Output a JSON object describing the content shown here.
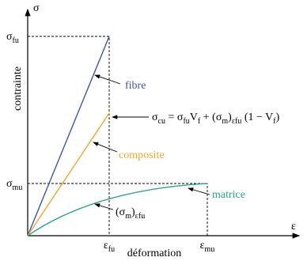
{
  "axes": {
    "y_symbol": "σ",
    "y_label": "contrainte",
    "x_symbol": "ε",
    "x_label": "déformation"
  },
  "ticks": {
    "sigma_fu": [
      {
        "text": "σ"
      },
      {
        "sub": "fu"
      }
    ],
    "sigma_mu": [
      {
        "text": "σ"
      },
      {
        "sub": "mu"
      }
    ],
    "eps_fu": [
      {
        "text": "ε"
      },
      {
        "sub": "fu"
      }
    ],
    "eps_mu": [
      {
        "text": "ε"
      },
      {
        "sub": "mu"
      }
    ]
  },
  "curves": {
    "fibre": "fibre",
    "composite": "composite",
    "matrice": "matrice"
  },
  "annotations": {
    "formula": [
      {
        "text": "σ"
      },
      {
        "sub": "cu"
      },
      {
        "text": " = σ"
      },
      {
        "sub": "fu"
      },
      {
        "text": "V"
      },
      {
        "sub": "f"
      },
      {
        "text": " + (σ"
      },
      {
        "sub": "m"
      },
      {
        "text": ")"
      },
      {
        "sub": "εfu"
      },
      {
        "text": " (1 − V"
      },
      {
        "sub": "f"
      },
      {
        "text": ")"
      }
    ],
    "sigma_m_at_eps_fu": [
      {
        "text": "(σ"
      },
      {
        "sub": "m"
      },
      {
        "text": ")"
      },
      {
        "sub": "εfu"
      }
    ]
  }
}
